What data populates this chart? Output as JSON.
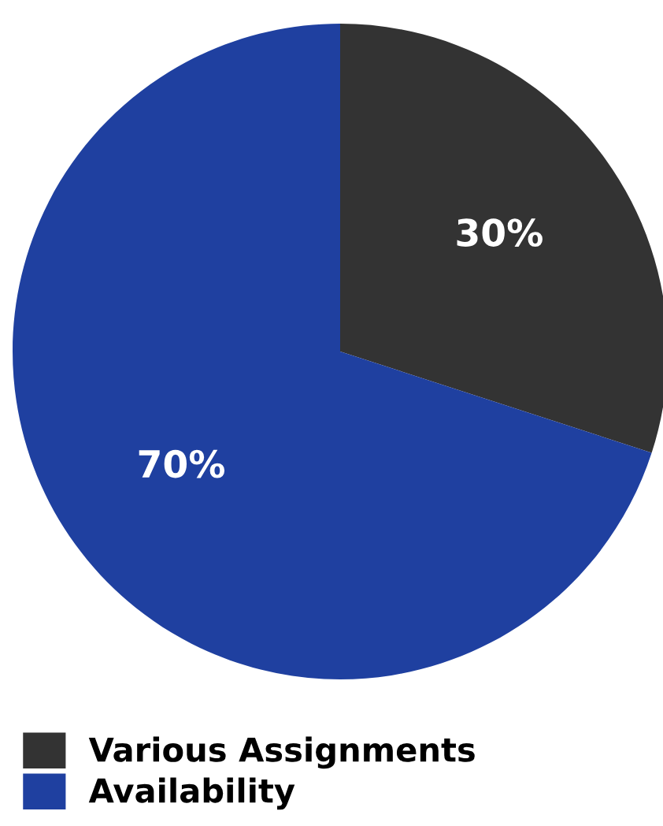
{
  "chart_data": {
    "type": "pie",
    "categories": [
      "Various Assignments",
      "Availability"
    ],
    "values": [
      30,
      70
    ],
    "value_labels": [
      "30%",
      "70%"
    ],
    "colors": [
      "#333333",
      "#1f40a0"
    ],
    "legend": "bottom left"
  }
}
